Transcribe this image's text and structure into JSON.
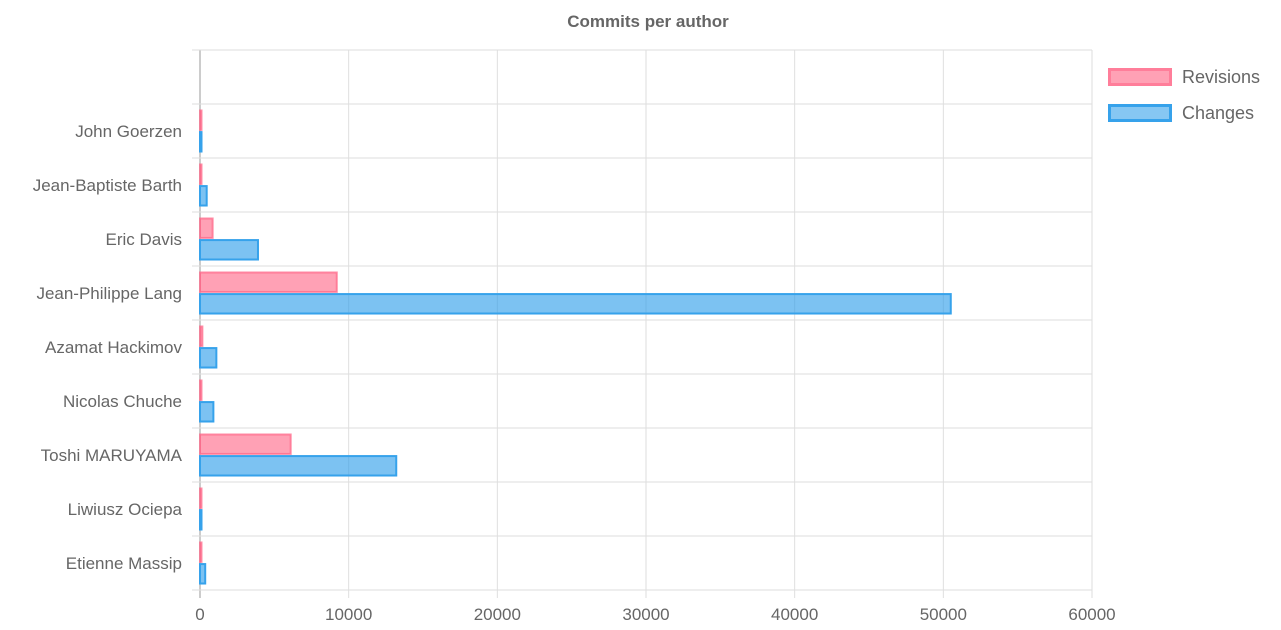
{
  "chart_data": {
    "type": "bar",
    "orientation": "horizontal",
    "title": "Commits per author",
    "categories": [
      "",
      "John Goerzen",
      "Jean-Baptiste Barth",
      "Eric Davis",
      "Jean-Philippe Lang",
      "Azamat Hackimov",
      "Nicolas Chuche",
      "Toshi MARUYAMA",
      "Liwiusz Ociepa",
      "Etienne Massip"
    ],
    "series": [
      {
        "name": "Revisions",
        "values": [
          0,
          15,
          30,
          850,
          9200,
          160,
          60,
          6100,
          20,
          70
        ],
        "color": "#ff6384"
      },
      {
        "name": "Changes",
        "values": [
          0,
          40,
          450,
          3900,
          50500,
          1100,
          900,
          13200,
          30,
          350
        ],
        "color": "#36a2eb"
      }
    ],
    "xlim": [
      0,
      60000
    ],
    "xticks": [
      0,
      10000,
      20000,
      30000,
      40000,
      50000,
      60000
    ],
    "grid": true,
    "legend_position": "right"
  }
}
